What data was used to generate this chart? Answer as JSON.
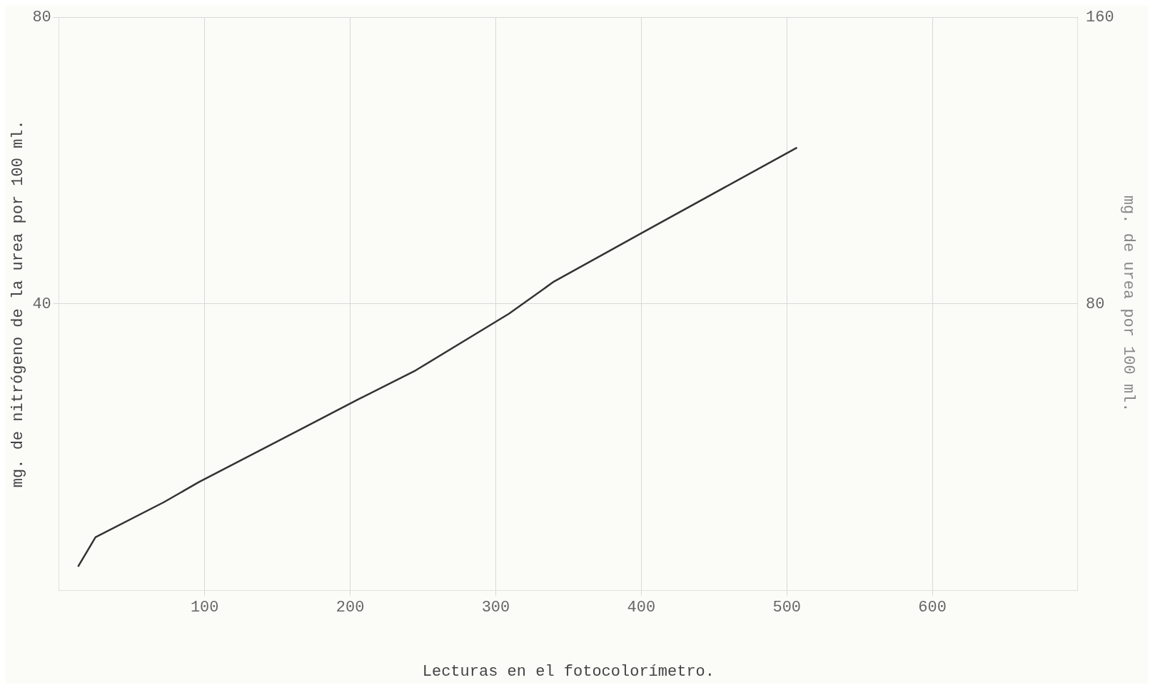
{
  "chart_data": {
    "type": "line",
    "xlabel": "Lecturas en el fotocolorímetro.",
    "ylabel": "mg. de nitrógeno de la urea por 100 ml.",
    "y2label": "mg. de urea por 100 ml.",
    "x": [
      13,
      25,
      72,
      96,
      170,
      206,
      245,
      309,
      340,
      404,
      507
    ],
    "series": [
      {
        "color": "#333333",
        "values": [
          3.3,
          7.4,
          12.3,
          15.1,
          22.9,
          26.7,
          30.7,
          38.6,
          43.1,
          50.3,
          61.8
        ]
      }
    ],
    "xlim": [
      0,
      700
    ],
    "ylim": [
      0,
      80
    ],
    "y2lim": [
      0,
      160
    ],
    "xticks": [
      100,
      200,
      300,
      400,
      500,
      600
    ],
    "yticks": [
      40,
      80
    ],
    "y2ticks": [
      80,
      160
    ],
    "grid": true,
    "legend": false,
    "marker": "none",
    "line_style": "solid"
  }
}
